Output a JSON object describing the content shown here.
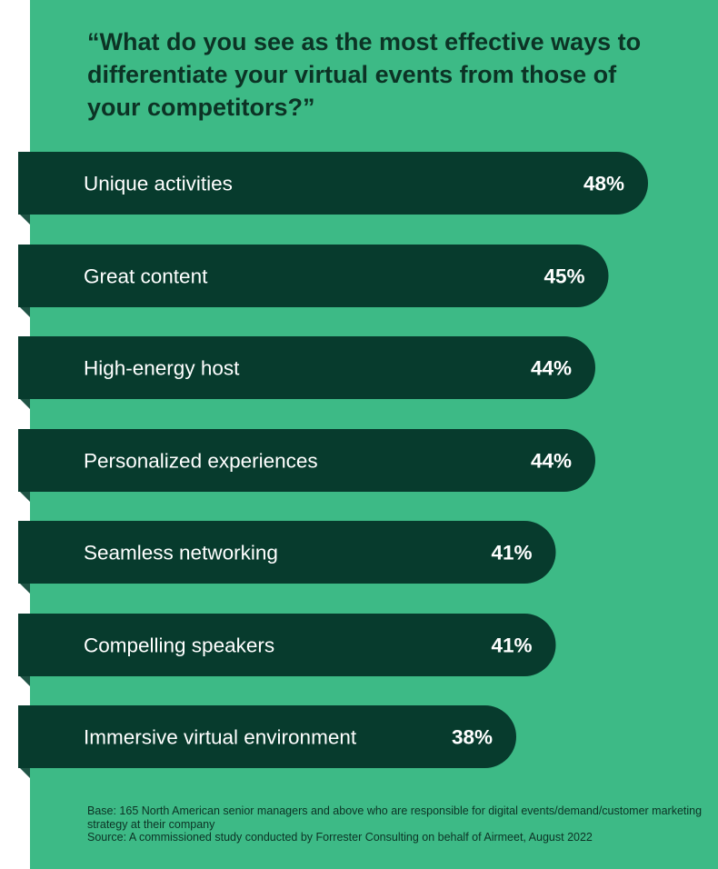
{
  "title": "“What do you see as the most effective ways to differentiate your virtual events from those of your competitors?”",
  "footnote": {
    "base": "Base: 165 North American senior managers and above who are responsible for digital events/demand/customer marketing strategy at their company",
    "source": "Source: A commissioned study conducted by Forrester Consulting on behalf of Airmeet, August 2022"
  },
  "colors": {
    "background": "#3dba86",
    "bar": "#073b2d",
    "bar_shadow": "#1f5445",
    "text": "#ffffff",
    "title": "#0c3325"
  },
  "chart_data": {
    "type": "bar",
    "orientation": "horizontal",
    "categories": [
      "Unique activities",
      "Great content",
      "High-energy host",
      "Personalized experiences",
      "Seamless networking",
      "Compelling speakers",
      "Immersive virtual environment"
    ],
    "values": [
      48,
      45,
      44,
      44,
      41,
      41,
      38
    ],
    "value_labels": [
      "48%",
      "45%",
      "44%",
      "44%",
      "41%",
      "41%",
      "38%"
    ],
    "unit": "%",
    "title": "“What do you see as the most effective ways to differentiate your virtual events from those of your competitors?”",
    "xlabel": "",
    "ylabel": "",
    "grid": false,
    "legend": "none"
  }
}
